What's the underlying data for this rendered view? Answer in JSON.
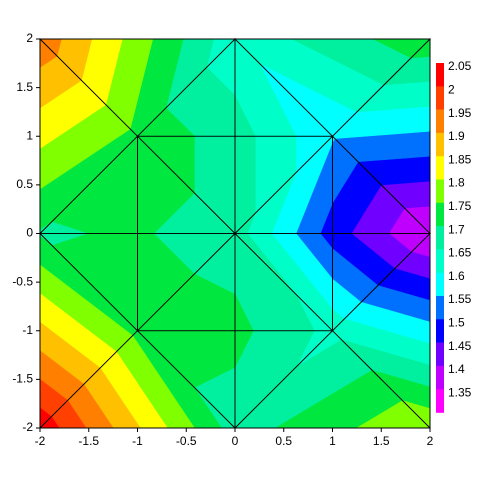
{
  "chart_data": {
    "type": "tricontour",
    "xlim": [
      -2,
      2
    ],
    "ylim": [
      -2,
      2
    ],
    "xticks": [
      -2,
      -1.5,
      -1,
      -0.5,
      0,
      0.5,
      1,
      1.5,
      2
    ],
    "yticks": [
      -2,
      -1.5,
      -1,
      -0.5,
      0,
      0.5,
      1,
      1.5,
      2
    ],
    "nodes": {
      "x": [
        -2,
        0,
        2,
        -2,
        0,
        2,
        -2,
        0,
        2,
        -1,
        1,
        -1,
        1,
        -1,
        1,
        0,
        0
      ],
      "y": [
        -2,
        -2,
        -2,
        0,
        0,
        0,
        2,
        2,
        2,
        -1,
        -1,
        1,
        1,
        0,
        0,
        -1,
        1
      ],
      "values": [
        2.06,
        1.7,
        1.82,
        1.72,
        1.7,
        1.37,
        1.96,
        1.64,
        1.76,
        1.76,
        1.66,
        1.76,
        1.58,
        1.73,
        1.5,
        1.74,
        1.7
      ]
    },
    "triangles": [
      [
        6,
        7,
        11
      ],
      [
        6,
        3,
        11
      ],
      [
        7,
        8,
        12
      ],
      [
        8,
        5,
        12
      ],
      [
        0,
        3,
        9
      ],
      [
        0,
        1,
        9
      ],
      [
        2,
        1,
        10
      ],
      [
        2,
        5,
        10
      ],
      [
        7,
        11,
        16
      ],
      [
        7,
        16,
        12
      ],
      [
        3,
        11,
        13
      ],
      [
        3,
        13,
        9
      ],
      [
        1,
        9,
        15
      ],
      [
        1,
        15,
        10
      ],
      [
        5,
        10,
        14
      ],
      [
        5,
        14,
        12
      ],
      [
        11,
        16,
        4
      ],
      [
        11,
        13,
        4
      ],
      [
        16,
        12,
        4
      ],
      [
        12,
        14,
        4
      ],
      [
        13,
        9,
        4
      ],
      [
        9,
        15,
        4
      ],
      [
        15,
        10,
        4
      ],
      [
        10,
        14,
        4
      ]
    ],
    "levels": [
      1.35,
      1.4,
      1.45,
      1.5,
      1.55,
      1.6,
      1.65,
      1.7,
      1.75,
      1.8,
      1.85,
      1.9,
      1.95,
      2,
      2.05
    ],
    "colors": [
      "#ff00ff",
      "#c000ff",
      "#7000ff",
      "#0000ff",
      "#0070ff",
      "#00ffff",
      "#00ffc8",
      "#00f0a0",
      "#00e840",
      "#80ff00",
      "#ffff00",
      "#ffc000",
      "#ff8000",
      "#ff4000",
      "#ff0000"
    ]
  }
}
